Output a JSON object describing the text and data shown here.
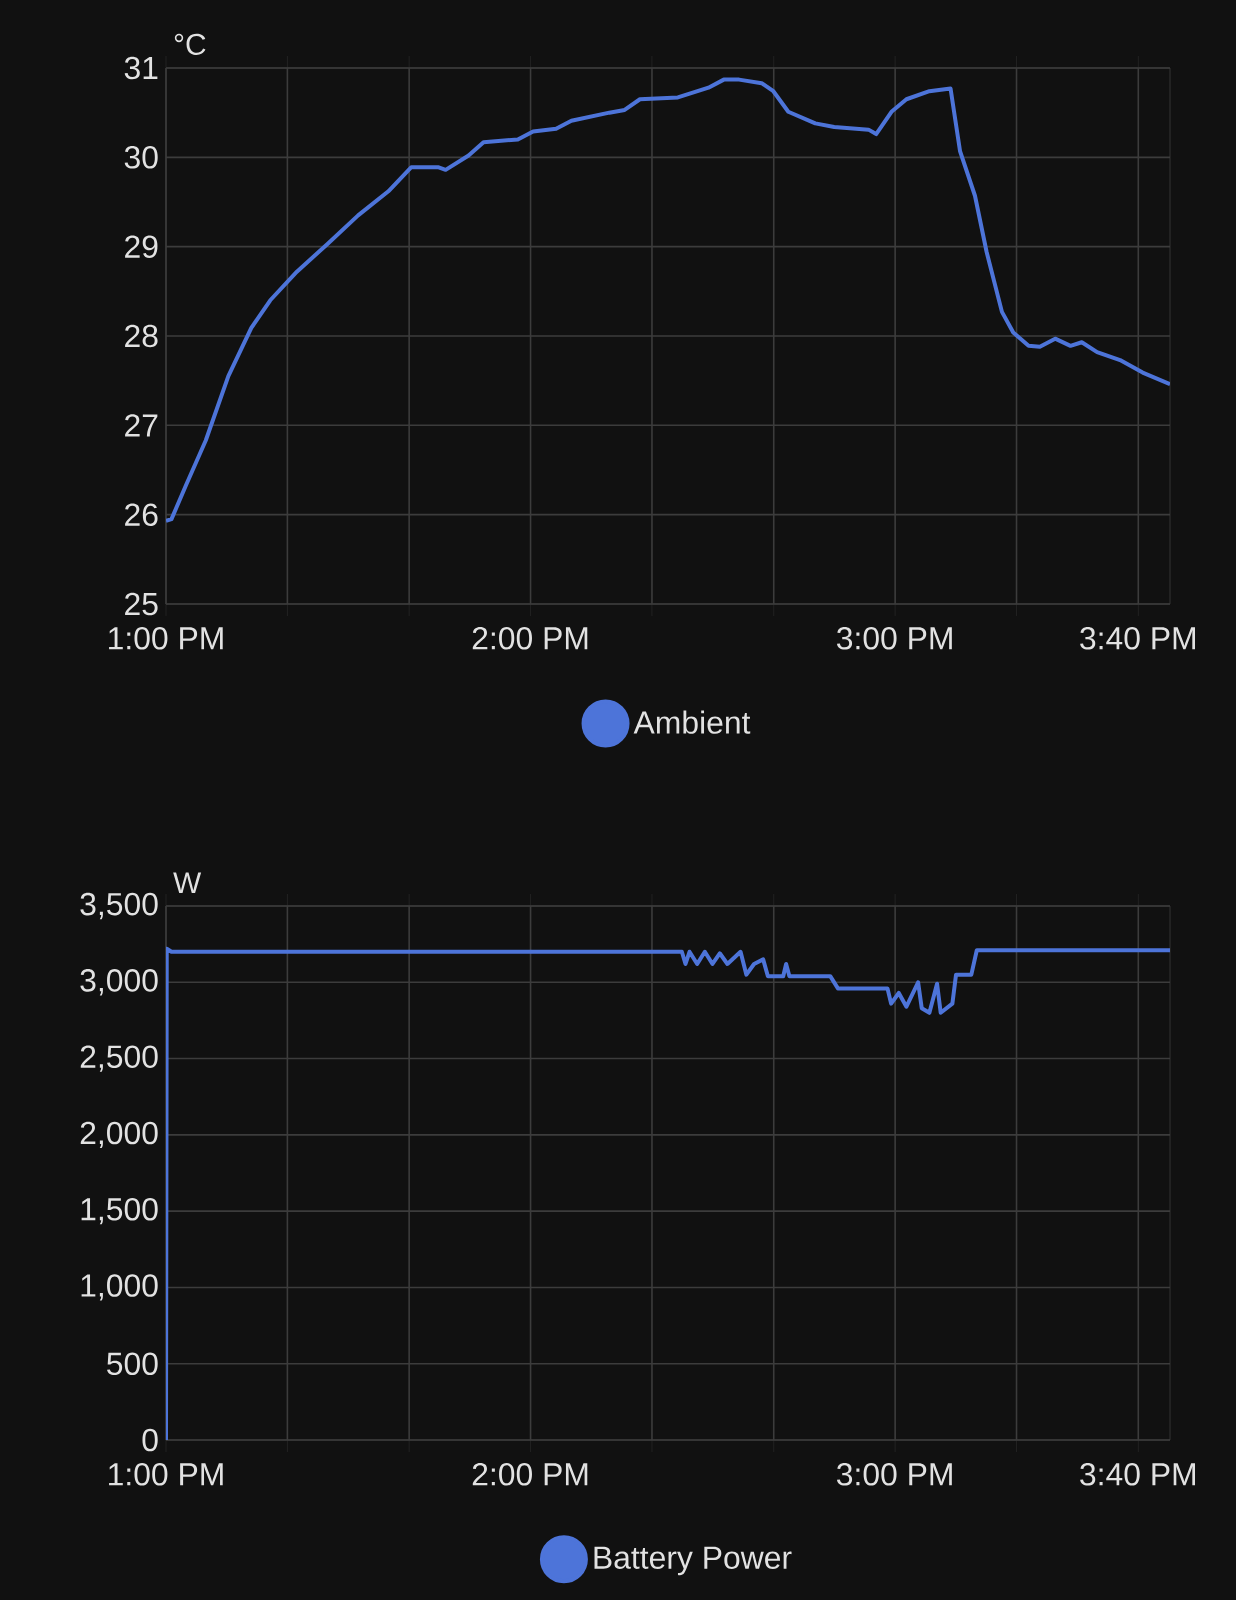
{
  "chart_data": [
    {
      "type": "line",
      "ylabel": "°C",
      "grid": true,
      "legend": "bottom",
      "xlim": [
        13,
        15.754
      ],
      "ylim": [
        25,
        31
      ],
      "xticks": [
        {
          "value": 13,
          "label": "1:00 PM"
        },
        {
          "value": 13.333,
          "label": null
        },
        {
          "value": 13.667,
          "label": null
        },
        {
          "value": 14,
          "label": "2:00 PM"
        },
        {
          "value": 14.333,
          "label": null
        },
        {
          "value": 14.667,
          "label": null
        },
        {
          "value": 15,
          "label": "3:00 PM"
        },
        {
          "value": 15.333,
          "label": null
        },
        {
          "value": 15.667,
          "label": "3:40 PM"
        }
      ],
      "yticks": [
        25,
        26,
        27,
        28,
        29,
        30,
        31
      ],
      "x": [
        13.0,
        13.015,
        13.056,
        13.109,
        13.171,
        13.234,
        13.286,
        13.359,
        13.443,
        13.527,
        13.61,
        13.673,
        13.746,
        13.767,
        13.83,
        13.871,
        13.965,
        14.007,
        14.07,
        14.112,
        14.216,
        14.258,
        14.3,
        14.404,
        14.488,
        14.53,
        14.572,
        14.634,
        14.666,
        14.707,
        14.781,
        14.833,
        14.927,
        14.948,
        14.99,
        15.031,
        15.094,
        15.152,
        15.178,
        15.219,
        15.251,
        15.293,
        15.324,
        15.366,
        15.397,
        15.439,
        15.481,
        15.512,
        15.554,
        15.617,
        15.679,
        15.754
      ],
      "series": [
        {
          "name": "Ambient",
          "color": "#4d74d9",
          "values": [
            25.93,
            25.95,
            26.34,
            26.83,
            27.55,
            28.09,
            28.4,
            28.72,
            29.03,
            29.35,
            29.62,
            29.89,
            29.89,
            29.86,
            30.02,
            30.17,
            30.2,
            30.29,
            30.32,
            30.41,
            30.5,
            30.53,
            30.65,
            30.67,
            30.78,
            30.87,
            30.87,
            30.83,
            30.74,
            30.51,
            30.38,
            30.34,
            30.31,
            30.26,
            30.51,
            30.65,
            30.74,
            30.77,
            30.07,
            29.57,
            28.94,
            28.27,
            28.04,
            27.89,
            27.88,
            27.97,
            27.89,
            27.93,
            27.82,
            27.73,
            27.59,
            27.46
          ]
        }
      ]
    },
    {
      "type": "line",
      "ylabel": "W",
      "grid": true,
      "legend": "bottom",
      "xlim": [
        13,
        15.754
      ],
      "ylim": [
        0,
        3500
      ],
      "xticks": [
        {
          "value": 13,
          "label": "1:00 PM"
        },
        {
          "value": 13.333,
          "label": null
        },
        {
          "value": 13.667,
          "label": null
        },
        {
          "value": 14,
          "label": "2:00 PM"
        },
        {
          "value": 14.333,
          "label": null
        },
        {
          "value": 14.667,
          "label": null
        },
        {
          "value": 15,
          "label": "3:00 PM"
        },
        {
          "value": 15.333,
          "label": null
        },
        {
          "value": 15.667,
          "label": "3:40 PM"
        }
      ],
      "yticks": [
        0,
        500,
        {
          "value": 1000,
          "label": "1,000"
        },
        {
          "value": 1500,
          "label": "1,500"
        },
        {
          "value": 2000,
          "label": "2,000"
        },
        {
          "value": 2500,
          "label": "2,500"
        },
        {
          "value": 3000,
          "label": "3,000"
        },
        {
          "value": 3500,
          "label": "3,500"
        }
      ],
      "x": [
        13.0,
        13.002,
        13.015,
        14.415,
        14.425,
        14.436,
        14.457,
        14.478,
        14.499,
        14.519,
        14.54,
        14.576,
        14.592,
        14.613,
        14.638,
        14.651,
        14.693,
        14.701,
        14.71,
        14.822,
        14.843,
        14.979,
        14.989,
        15.01,
        15.031,
        15.063,
        15.073,
        15.094,
        15.115,
        15.125,
        15.157,
        15.167,
        15.209,
        15.224,
        15.754
      ],
      "series": [
        {
          "name": "Battery Power",
          "color": "#4d74d9",
          "values": [
            0,
            3220,
            3200,
            3200,
            3120,
            3200,
            3120,
            3200,
            3120,
            3190,
            3120,
            3200,
            3050,
            3120,
            3150,
            3040,
            3040,
            3120,
            3040,
            3040,
            2960,
            2960,
            2860,
            2930,
            2840,
            3000,
            2830,
            2800,
            2990,
            2800,
            2860,
            3050,
            3050,
            3210,
            3210
          ]
        }
      ]
    }
  ]
}
